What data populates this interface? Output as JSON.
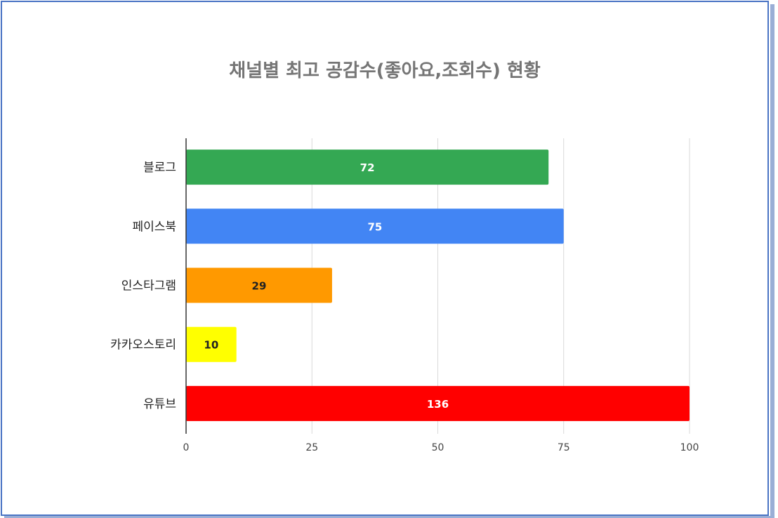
{
  "chart_data": {
    "type": "bar",
    "orientation": "horizontal",
    "title": "채널별 최고 공감수(좋아요,조회수) 현황",
    "xlabel": "",
    "ylabel": "",
    "categories": [
      "블로그",
      "페이스북",
      "인스타그램",
      "카카오스토리",
      "유튜브"
    ],
    "values": [
      72,
      75,
      29,
      10,
      136
    ],
    "value_labels": [
      "72",
      "75",
      "29",
      "10",
      "136"
    ],
    "colors": [
      "#34a853",
      "#4285f4",
      "#ff9900",
      "#ffff00",
      "#ff0000"
    ],
    "label_colors": [
      "#ffffff",
      "#ffffff",
      "#222222",
      "#222222",
      "#ffffff"
    ],
    "xlim": [
      0,
      100
    ],
    "x_ticks": [
      0,
      25,
      50,
      75,
      100
    ],
    "x_tick_labels": [
      "0",
      "25",
      "50",
      "75",
      "100"
    ],
    "grid": true,
    "legend": "none"
  },
  "colors": {
    "frame_border": "#4a74c4",
    "gridline": "#d9d9d9",
    "title": "#757575"
  }
}
